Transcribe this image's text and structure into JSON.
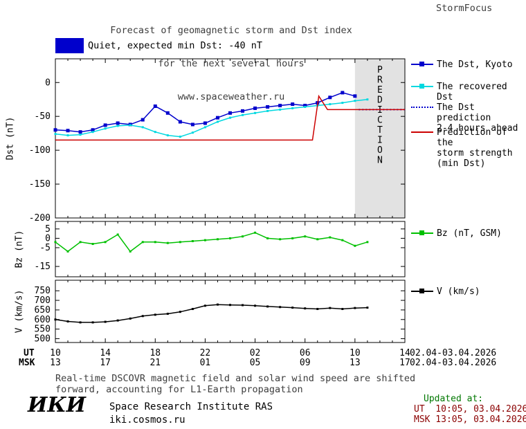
{
  "colors": {
    "dst_kyoto": "#0000cc",
    "recovered_dst": "#00d8e0",
    "dst_prediction": "#0000cc",
    "storm_prediction": "#cc0000",
    "bz": "#00c000",
    "v": "#000000",
    "prediction_band": "#e2e2e2",
    "prediction_text": "#b0b0b0",
    "title_text": "#3d3d3d",
    "status_swatch": "#0000cc",
    "updated_label": "#007700",
    "updated_time": "#8b0000"
  },
  "header": {
    "title_line1": "Forecast of geomagnetic storm and Dst index",
    "title_line2": "for the next several hours",
    "title_line3": "www.spaceweather.ru",
    "brand": "StormFocus"
  },
  "status": {
    "label": "Quiet, expected min Dst: -40 nT"
  },
  "legend": {
    "dst_kyoto": "The Dst, Kyoto",
    "recovered_dst": "The recovered Dst",
    "dst_prediction_line1": "The Dst prediction",
    "dst_prediction_line2": "2-4 hours ahead",
    "storm_line1": "Prediction of the",
    "storm_line2": "storm strength",
    "storm_line3": "(min Dst)",
    "bz": "Bz (nT, GSM)",
    "v": "V (km/s)"
  },
  "axes": {
    "dst_ylabel": "Dst (nT)",
    "bz_ylabel": "Bz (nT)",
    "v_ylabel": "V (km/s)",
    "ut_row_label": "UT",
    "msk_row_label": "MSK",
    "ut_date_range": "02.04-03.04.2026",
    "msk_date_range": "02.04-03.04.2026"
  },
  "footer": {
    "note_line1": "Real-time DSCOVR magnetic field and solar wind speed are shifted",
    "note_line2": "forward, accounting for L1-Earth propagation",
    "logo": "ИКИ",
    "institute": "Space Research Institute RAS",
    "website": "iki.cosmos.ru",
    "updated_label": "Updated at:",
    "updated_ut": "UT  10:05, 03.04.2026",
    "updated_msk": "MSK 13:05, 03.04.2026"
  },
  "chart_data": [
    {
      "type": "line",
      "panel": "dst",
      "ylabel": "Dst (nT)",
      "ylim": [
        -200,
        35
      ],
      "yticks": [
        0,
        -50,
        -100,
        -150,
        -200
      ],
      "x_axis": "hours UT, 10:00 02.04 to 14:00 03.04.2026",
      "xlim_hours": [
        10,
        38
      ],
      "xtick_hours": [
        10,
        14,
        18,
        22,
        26,
        30,
        34,
        38
      ],
      "xtick_labels_ut": [
        "10",
        "14",
        "18",
        "22",
        "02",
        "06",
        "10",
        "14"
      ],
      "xtick_labels_msk": [
        "13",
        "17",
        "21",
        "01",
        "05",
        "09",
        "13",
        "17"
      ],
      "prediction_band": {
        "start_hour": 34,
        "end_hour": 38,
        "label": "PREDICTION"
      },
      "series": [
        {
          "name": "The Dst, Kyoto",
          "color": "#0000cc",
          "marker": "square",
          "marker_size": 5,
          "x": [
            10,
            11,
            12,
            13,
            14,
            15,
            16,
            17,
            18,
            19,
            20,
            21,
            22,
            23,
            24,
            25,
            26,
            27,
            28,
            29,
            30,
            31,
            32,
            33,
            34
          ],
          "y": [
            -70,
            -71,
            -73,
            -70,
            -63,
            -60,
            -62,
            -55,
            -35,
            -45,
            -58,
            -62,
            -60,
            -52,
            -45,
            -42,
            -38,
            -36,
            -34,
            -32,
            -34,
            -30,
            -22,
            -15,
            -20
          ]
        },
        {
          "name": "The recovered Dst",
          "color": "#00d8e0",
          "marker": "square",
          "marker_size": 3,
          "x": [
            10,
            11,
            12,
            13,
            14,
            15,
            16,
            17,
            18,
            19,
            20,
            21,
            22,
            23,
            24,
            25,
            26,
            27,
            28,
            29,
            30,
            31,
            32,
            33,
            34,
            35
          ],
          "y": [
            -76,
            -78,
            -77,
            -73,
            -68,
            -64,
            -63,
            -66,
            -73,
            -78,
            -80,
            -74,
            -66,
            -58,
            -52,
            -48,
            -45,
            -42,
            -40,
            -38,
            -36,
            -34,
            -32,
            -30,
            -27,
            -25
          ]
        },
        {
          "name": "The Dst prediction 2-4 hours ahead",
          "color": "#0000cc",
          "line_style": "dotted",
          "x": [
            34.3,
            38
          ],
          "y": [
            -40,
            -40
          ]
        },
        {
          "name": "Prediction of the storm strength (min Dst)",
          "color": "#cc0000",
          "x": [
            10,
            30.6,
            31.1,
            31.8,
            38
          ],
          "y": [
            -85,
            -85,
            -20,
            -40,
            -40
          ]
        }
      ]
    },
    {
      "type": "line",
      "panel": "bz",
      "ylabel": "Bz (nT)",
      "ylim": [
        -20.5,
        9
      ],
      "yticks": [
        5,
        0,
        -5,
        -15
      ],
      "series": [
        {
          "name": "Bz (nT, GSM)",
          "color": "#00c000",
          "marker": "square",
          "marker_size": 3,
          "x": [
            10,
            11,
            12,
            13,
            14,
            15,
            16,
            17,
            18,
            19,
            20,
            21,
            22,
            23,
            24,
            25,
            26,
            27,
            28,
            29,
            30,
            31,
            32,
            33,
            34,
            35
          ],
          "y": [
            -2,
            -7,
            -2,
            -3,
            -2,
            2,
            -7,
            -2,
            -2,
            -2.5,
            -2,
            -1.5,
            -1,
            -0.5,
            0,
            1,
            3,
            0,
            -0.5,
            0,
            1,
            -0.5,
            0.5,
            -1,
            -4,
            -2
          ]
        }
      ]
    },
    {
      "type": "line",
      "panel": "v",
      "ylabel": "V (km/s)",
      "ylim": [
        480,
        805
      ],
      "yticks": [
        750,
        700,
        650,
        600,
        550,
        500
      ],
      "series": [
        {
          "name": "V (km/s)",
          "color": "#000000",
          "marker": "square",
          "marker_size": 3,
          "x": [
            10,
            11,
            12,
            13,
            14,
            15,
            16,
            17,
            18,
            19,
            20,
            21,
            22,
            23,
            24,
            25,
            26,
            27,
            28,
            29,
            30,
            31,
            32,
            33,
            34,
            35
          ],
          "y": [
            600,
            590,
            585,
            585,
            588,
            595,
            605,
            618,
            625,
            630,
            640,
            655,
            672,
            678,
            676,
            675,
            672,
            668,
            665,
            662,
            658,
            655,
            660,
            655,
            660,
            662
          ]
        }
      ]
    }
  ]
}
